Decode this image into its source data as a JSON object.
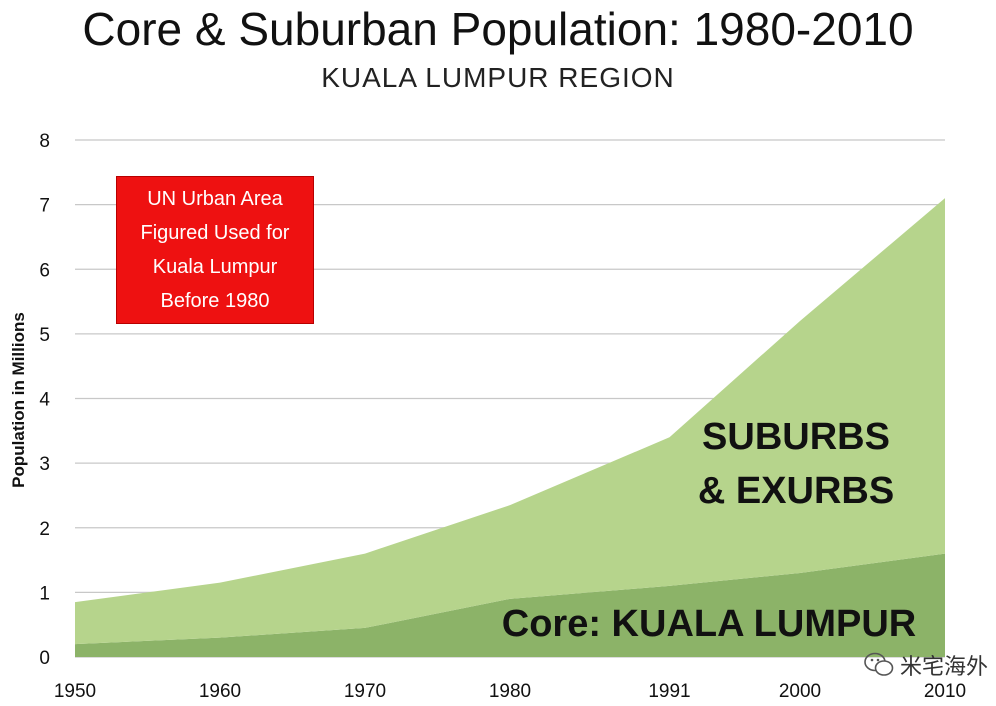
{
  "chart_data": {
    "type": "area",
    "title": "Core & Suburban Population: 1980-2010",
    "subtitle": "KUALA LUMPUR REGION",
    "ylabel": "Population in Millions",
    "xlabel": "",
    "x": [
      1950,
      1960,
      1970,
      1980,
      1991,
      2000,
      2010
    ],
    "x_tick_labels": [
      "1950",
      "1960",
      "1970",
      "1980",
      "1991",
      "2000",
      "2010"
    ],
    "ylim": [
      0,
      8
    ],
    "y_ticks": [
      "0",
      "1",
      "2",
      "3",
      "4",
      "5",
      "6",
      "7",
      "8"
    ],
    "grid": true,
    "stacked": true,
    "series": [
      {
        "name": "Core: KUALA LUMPUR",
        "values": [
          0.2,
          0.3,
          0.45,
          0.9,
          1.1,
          1.3,
          1.6
        ],
        "color": "#8cb368"
      },
      {
        "name": "SUBURBS & EXURBS",
        "values": [
          0.65,
          0.85,
          1.15,
          1.45,
          2.3,
          3.9,
          5.5
        ],
        "color": "#b6d48c"
      }
    ],
    "annotations": [
      {
        "label": "SUBURBS & EXURBS",
        "lines": [
          "SUBURBS",
          "& EXURBS"
        ]
      },
      {
        "label": "Core: KUALA LUMPUR"
      }
    ]
  },
  "note_box": {
    "lines": [
      "UN Urban Area",
      "Figured Used for",
      "Kuala Lumpur",
      "Before 1980"
    ],
    "color": "#ee1111"
  },
  "watermark": {
    "text": "米宅海外",
    "icon": "wechat-icon"
  }
}
